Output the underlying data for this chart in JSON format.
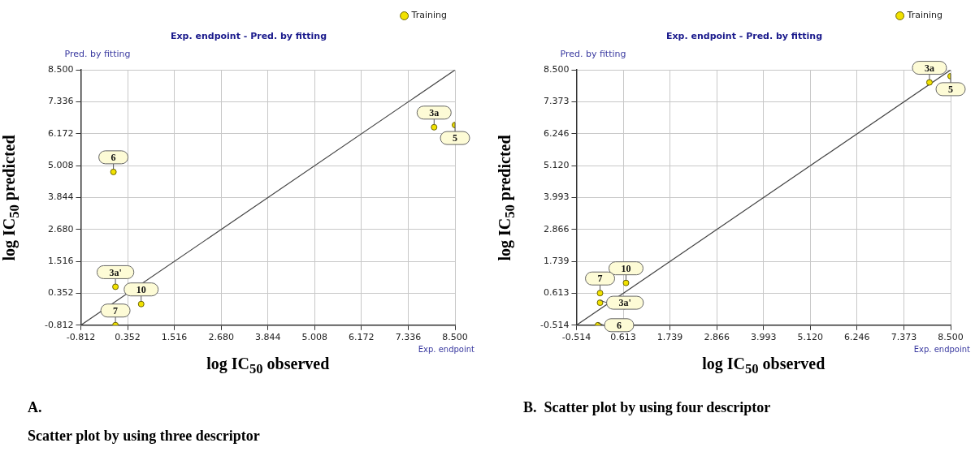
{
  "chart_data": [
    {
      "type": "scatter",
      "title": "Exp. endpoint - Pred. by fitting",
      "xlabel": "log IC$_{50}$ observed",
      "ylabel": "log IC$_{50}$ predicted",
      "annotations": [
        "Pred. by fitting",
        "Exp. endpoint",
        "A.",
        "Scatter plot by using three descriptor",
        {
          "text": "6",
          "x": 0.0,
          "y": 4.78
        },
        {
          "text": "3a",
          "x": 7.98,
          "y": 6.41
        },
        {
          "text": "5",
          "x": 8.5,
          "y": 6.49
        },
        {
          "text": "3a'",
          "x": 0.05,
          "y": 0.59
        },
        {
          "text": "10",
          "x": 0.69,
          "y": -0.04
        },
        {
          "text": "7",
          "x": 0.05,
          "y": -0.81
        }
      ],
      "xlim": [
        -0.812,
        8.5
      ],
      "ylim": [
        -0.812,
        8.5
      ],
      "xticks": [
        {
          "value": -0.812,
          "label": "-0.812"
        },
        {
          "value": 0.352,
          "label": "0.352"
        },
        {
          "value": 1.516,
          "label": "1.516"
        },
        {
          "value": 2.68,
          "label": "2.680"
        },
        {
          "value": 3.844,
          "label": "3.844"
        },
        {
          "value": 5.008,
          "label": "5.008"
        },
        {
          "value": 6.172,
          "label": "6.172"
        },
        {
          "value": 7.336,
          "label": "7.336"
        },
        {
          "value": 8.5,
          "label": "8.500"
        }
      ],
      "yticks": [
        {
          "value": -0.812,
          "label": "-0.812"
        },
        {
          "value": 0.352,
          "label": "0.352"
        },
        {
          "value": 1.516,
          "label": "1.516"
        },
        {
          "value": 2.68,
          "label": "2.680"
        },
        {
          "value": 3.844,
          "label": "3.844"
        },
        {
          "value": 5.008,
          "label": "5.008"
        },
        {
          "value": 6.172,
          "label": "6.172"
        },
        {
          "value": 7.336,
          "label": "7.336"
        },
        {
          "value": 8.5,
          "label": "8.500"
        }
      ],
      "grid": true,
      "legend": "top right",
      "marker": "circle",
      "series": [
        {
          "name": "Training",
          "color": "#f2e200",
          "x": [
            0.0,
            7.98,
            8.5,
            0.05,
            0.69,
            0.05
          ],
          "values": [
            4.78,
            6.41,
            6.49,
            0.59,
            -0.04,
            -0.81
          ]
        },
        {
          "type": "line",
          "color": "#444444",
          "marker": "none",
          "x": [
            -0.812,
            8.5
          ],
          "values": [
            -0.812,
            8.5
          ]
        }
      ]
    },
    {
      "type": "scatter",
      "title": "Exp. endpoint - Pred. by fitting",
      "xlabel": "log IC$_{50}$ observed",
      "ylabel": "log IC$_{50}$ predicted",
      "annotations": [
        "Pred. by fitting",
        "Exp. endpoint",
        "B.  Scatter plot by using four descriptor",
        {
          "text": "3a",
          "x": 7.99,
          "y": 8.06
        },
        {
          "text": "5",
          "x": 8.5,
          "y": 8.28
        },
        {
          "text": "10",
          "x": 0.68,
          "y": 0.98
        },
        {
          "text": "7",
          "x": 0.055,
          "y": 0.62
        },
        {
          "text": "3a'",
          "x": 0.055,
          "y": 0.28
        },
        {
          "text": "6",
          "x": 0.005,
          "y": -0.514
        }
      ],
      "xlim": [
        -0.514,
        8.5
      ],
      "ylim": [
        -0.514,
        8.5
      ],
      "xticks": [
        {
          "value": -0.514,
          "label": "-0.514"
        },
        {
          "value": 0.613,
          "label": "0.613"
        },
        {
          "value": 1.739,
          "label": "1.739"
        },
        {
          "value": 2.866,
          "label": "2.866"
        },
        {
          "value": 3.993,
          "label": "3.993"
        },
        {
          "value": 5.12,
          "label": "5.120"
        },
        {
          "value": 6.246,
          "label": "6.246"
        },
        {
          "value": 7.373,
          "label": "7.373"
        },
        {
          "value": 8.5,
          "label": "8.500"
        }
      ],
      "yticks": [
        {
          "value": -0.514,
          "label": "-0.514"
        },
        {
          "value": 0.613,
          "label": "0.613"
        },
        {
          "value": 1.739,
          "label": "1.739"
        },
        {
          "value": 2.866,
          "label": "2.866"
        },
        {
          "value": 3.993,
          "label": "3.993"
        },
        {
          "value": 5.12,
          "label": "5.120"
        },
        {
          "value": 6.246,
          "label": "6.246"
        },
        {
          "value": 7.373,
          "label": "7.373"
        },
        {
          "value": 8.5,
          "label": "8.500"
        }
      ],
      "grid": true,
      "legend": "top right",
      "marker": "circle",
      "series": [
        {
          "name": "Training",
          "color": "#f2e200",
          "x": [
            7.99,
            8.5,
            0.68,
            0.055,
            0.055,
            0.005
          ],
          "values": [
            8.06,
            8.28,
            0.98,
            0.62,
            0.28,
            -0.514
          ]
        },
        {
          "type": "line",
          "color": "#444444",
          "marker": "none",
          "x": [
            -0.514,
            8.5
          ],
          "values": [
            -0.514,
            8.5
          ]
        }
      ]
    }
  ]
}
